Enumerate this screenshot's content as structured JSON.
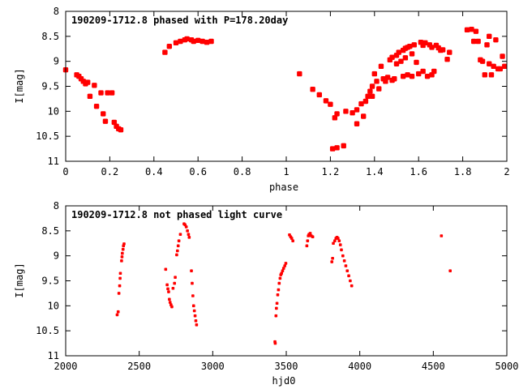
{
  "chart_data": [
    {
      "type": "scatter",
      "title": "190209-1712.8 phased with P=178.20day",
      "xlabel": "phase",
      "ylabel": "I[mag]",
      "xlim": [
        0,
        2
      ],
      "ylim": [
        8,
        11
      ],
      "y_inverted": true,
      "x_ticks": [
        "0",
        "0.2",
        "0.4",
        "0.6",
        "0.8",
        "1",
        "1.2",
        "1.4",
        "1.6",
        "1.8",
        "2"
      ],
      "y_ticks": [
        "8",
        "8.5",
        "9",
        "9.5",
        "10",
        "10.5",
        "11"
      ],
      "grid": false,
      "color": "#ff0000",
      "marker_size": 3.2,
      "points": [
        [
          0.0,
          9.17
        ],
        [
          0.05,
          9.27
        ],
        [
          0.06,
          9.3
        ],
        [
          0.07,
          9.35
        ],
        [
          0.08,
          9.4
        ],
        [
          0.09,
          9.45
        ],
        [
          0.1,
          9.42
        ],
        [
          0.11,
          9.7
        ],
        [
          0.13,
          9.48
        ],
        [
          0.14,
          9.9
        ],
        [
          0.16,
          9.63
        ],
        [
          0.17,
          10.05
        ],
        [
          0.18,
          10.2
        ],
        [
          0.19,
          9.63
        ],
        [
          0.21,
          9.63
        ],
        [
          0.22,
          10.22
        ],
        [
          0.23,
          10.3
        ],
        [
          0.24,
          10.35
        ],
        [
          0.25,
          10.37
        ],
        [
          0.45,
          8.82
        ],
        [
          0.47,
          8.7
        ],
        [
          0.5,
          8.63
        ],
        [
          0.52,
          8.6
        ],
        [
          0.54,
          8.57
        ],
        [
          0.55,
          8.55
        ],
        [
          0.57,
          8.57
        ],
        [
          0.58,
          8.6
        ],
        [
          0.6,
          8.58
        ],
        [
          0.62,
          8.6
        ],
        [
          0.64,
          8.62
        ],
        [
          0.66,
          8.6
        ],
        [
          1.06,
          9.25
        ],
        [
          1.12,
          9.56
        ],
        [
          1.15,
          9.67
        ],
        [
          1.18,
          9.79
        ],
        [
          1.2,
          9.86
        ],
        [
          1.21,
          10.75
        ],
        [
          1.23,
          10.73
        ],
        [
          1.22,
          10.13
        ],
        [
          1.23,
          10.05
        ],
        [
          1.26,
          10.69
        ],
        [
          1.27,
          10.0
        ],
        [
          1.3,
          10.03
        ],
        [
          1.32,
          10.25
        ],
        [
          1.32,
          9.97
        ],
        [
          1.34,
          9.85
        ],
        [
          1.35,
          10.1
        ],
        [
          1.36,
          9.8
        ],
        [
          1.37,
          9.7
        ],
        [
          1.38,
          9.6
        ],
        [
          1.39,
          9.7
        ],
        [
          1.39,
          9.5
        ],
        [
          1.4,
          9.25
        ],
        [
          1.41,
          9.4
        ],
        [
          1.42,
          9.55
        ],
        [
          1.43,
          9.1
        ],
        [
          1.44,
          9.35
        ],
        [
          1.45,
          9.4
        ],
        [
          1.46,
          9.32
        ],
        [
          1.47,
          8.97
        ],
        [
          1.48,
          9.38
        ],
        [
          1.48,
          8.92
        ],
        [
          1.49,
          9.35
        ],
        [
          1.5,
          8.88
        ],
        [
          1.5,
          9.05
        ],
        [
          1.51,
          8.82
        ],
        [
          1.52,
          9.0
        ],
        [
          1.53,
          8.78
        ],
        [
          1.53,
          9.3
        ],
        [
          1.54,
          8.74
        ],
        [
          1.54,
          8.93
        ],
        [
          1.55,
          9.27
        ],
        [
          1.55,
          8.72
        ],
        [
          1.56,
          8.7
        ],
        [
          1.57,
          9.3
        ],
        [
          1.57,
          8.85
        ],
        [
          1.58,
          8.67
        ],
        [
          1.59,
          9.02
        ],
        [
          1.6,
          9.25
        ],
        [
          1.61,
          8.62
        ],
        [
          1.62,
          9.2
        ],
        [
          1.62,
          8.68
        ],
        [
          1.63,
          8.63
        ],
        [
          1.64,
          9.3
        ],
        [
          1.65,
          8.67
        ],
        [
          1.66,
          9.27
        ],
        [
          1.66,
          8.72
        ],
        [
          1.67,
          9.2
        ],
        [
          1.68,
          8.68
        ],
        [
          1.69,
          8.73
        ],
        [
          1.7,
          8.78
        ],
        [
          1.71,
          8.77
        ],
        [
          1.73,
          8.96
        ],
        [
          1.74,
          8.82
        ],
        [
          1.82,
          8.37
        ],
        [
          1.84,
          8.36
        ],
        [
          1.85,
          8.6
        ],
        [
          1.86,
          8.4
        ],
        [
          1.87,
          8.6
        ],
        [
          1.88,
          8.97
        ],
        [
          1.89,
          9.0
        ],
        [
          1.9,
          9.27
        ],
        [
          1.91,
          8.67
        ],
        [
          1.92,
          9.05
        ],
        [
          1.92,
          8.5
        ],
        [
          1.93,
          9.27
        ],
        [
          1.94,
          9.1
        ],
        [
          1.95,
          8.57
        ],
        [
          1.96,
          9.15
        ],
        [
          1.97,
          9.15
        ],
        [
          1.98,
          8.9
        ],
        [
          1.99,
          9.1
        ]
      ]
    },
    {
      "type": "scatter",
      "title": "190209-1712.8 not phased light curve",
      "xlabel": "hjd0",
      "ylabel": "I[mag]",
      "xlim": [
        2000,
        5000
      ],
      "ylim": [
        8,
        11
      ],
      "y_inverted": true,
      "x_ticks": [
        "2000",
        "2500",
        "3000",
        "3500",
        "4000",
        "4500",
        "5000"
      ],
      "y_ticks": [
        "8",
        "8.5",
        "9",
        "9.5",
        "10",
        "10.5",
        "11"
      ],
      "grid": false,
      "color": "#ff0000",
      "marker_size": 1.8,
      "points": [
        [
          2350,
          10.18
        ],
        [
          2357,
          10.12
        ],
        [
          2362,
          9.75
        ],
        [
          2367,
          9.6
        ],
        [
          2370,
          9.45
        ],
        [
          2372,
          9.35
        ],
        [
          2380,
          9.1
        ],
        [
          2383,
          9.02
        ],
        [
          2385,
          8.95
        ],
        [
          2390,
          8.87
        ],
        [
          2393,
          8.8
        ],
        [
          2397,
          8.76
        ],
        [
          2680,
          9.27
        ],
        [
          2690,
          9.58
        ],
        [
          2695,
          9.66
        ],
        [
          2700,
          9.72
        ],
        [
          2705,
          9.87
        ],
        [
          2710,
          9.93
        ],
        [
          2716,
          9.98
        ],
        [
          2722,
          10.02
        ],
        [
          2730,
          9.65
        ],
        [
          2740,
          9.55
        ],
        [
          2745,
          9.43
        ],
        [
          2755,
          8.98
        ],
        [
          2760,
          8.9
        ],
        [
          2765,
          8.8
        ],
        [
          2770,
          8.7
        ],
        [
          2780,
          8.57
        ],
        [
          2805,
          8.36
        ],
        [
          2812,
          8.38
        ],
        [
          2820,
          8.42
        ],
        [
          2828,
          8.5
        ],
        [
          2835,
          8.57
        ],
        [
          2840,
          8.63
        ],
        [
          2855,
          9.3
        ],
        [
          2860,
          9.55
        ],
        [
          2865,
          9.8
        ],
        [
          2870,
          10.0
        ],
        [
          2875,
          10.1
        ],
        [
          2880,
          10.2
        ],
        [
          2885,
          10.3
        ],
        [
          2890,
          10.38
        ],
        [
          3423,
          10.72
        ],
        [
          3425,
          10.75
        ],
        [
          3430,
          10.2
        ],
        [
          3433,
          10.05
        ],
        [
          3437,
          9.95
        ],
        [
          3442,
          9.78
        ],
        [
          3447,
          9.68
        ],
        [
          3452,
          9.55
        ],
        [
          3458,
          9.45
        ],
        [
          3463,
          9.38
        ],
        [
          3468,
          9.35
        ],
        [
          3475,
          9.3
        ],
        [
          3482,
          9.25
        ],
        [
          3490,
          9.2
        ],
        [
          3497,
          9.15
        ],
        [
          3522,
          8.58
        ],
        [
          3530,
          8.62
        ],
        [
          3537,
          8.65
        ],
        [
          3545,
          8.7
        ],
        [
          3640,
          8.8
        ],
        [
          3645,
          8.7
        ],
        [
          3650,
          8.6
        ],
        [
          3655,
          8.57
        ],
        [
          3663,
          8.55
        ],
        [
          3670,
          8.6
        ],
        [
          3680,
          8.62
        ],
        [
          3810,
          9.12
        ],
        [
          3815,
          9.05
        ],
        [
          3820,
          8.75
        ],
        [
          3830,
          8.7
        ],
        [
          3838,
          8.65
        ],
        [
          3845,
          8.63
        ],
        [
          3852,
          8.65
        ],
        [
          3860,
          8.7
        ],
        [
          3868,
          8.78
        ],
        [
          3875,
          8.88
        ],
        [
          3885,
          9.0
        ],
        [
          3895,
          9.1
        ],
        [
          3905,
          9.2
        ],
        [
          3915,
          9.3
        ],
        [
          3925,
          9.4
        ],
        [
          3935,
          9.5
        ],
        [
          3945,
          9.6
        ],
        [
          4555,
          8.6
        ],
        [
          4615,
          9.3
        ]
      ]
    }
  ]
}
